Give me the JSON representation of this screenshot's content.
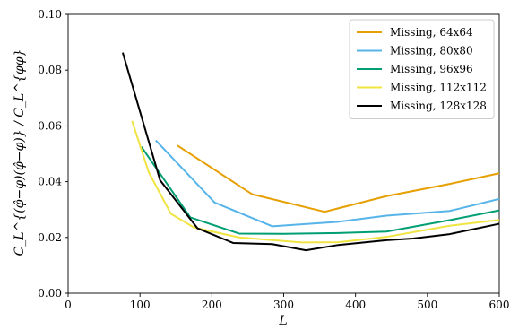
{
  "chart_data": {
    "type": "line",
    "title": "",
    "xlabel": "L",
    "ylabel": "C_L^{(φ̂−φ)(φ̂−φ)} / C_L^{φφ}",
    "xlim": [
      0,
      600
    ],
    "ylim": [
      0.0,
      0.1
    ],
    "xticks": [
      0,
      100,
      200,
      300,
      400,
      500,
      600
    ],
    "xtick_labels": [
      "0",
      "100",
      "200",
      "300",
      "400",
      "500",
      "600"
    ],
    "yticks": [
      0.0,
      0.02,
      0.04,
      0.06,
      0.08,
      0.1
    ],
    "ytick_labels": [
      "0.00",
      "0.02",
      "0.04",
      "0.06",
      "0.08",
      "0.10"
    ],
    "grid": false,
    "legend_position": "top-right",
    "series": [
      {
        "name": "Missing, 64x64",
        "color": "#E69F00",
        "points": [
          [
            152,
            0.053
          ],
          [
            256,
            0.0355
          ],
          [
            357,
            0.0292
          ],
          [
            443,
            0.0348
          ],
          [
            531,
            0.0392
          ],
          [
            600,
            0.043
          ]
        ]
      },
      {
        "name": "Missing, 80x80",
        "color": "#56B4E9",
        "points": [
          [
            122,
            0.0548
          ],
          [
            204,
            0.0325
          ],
          [
            284,
            0.024
          ],
          [
            376,
            0.0256
          ],
          [
            443,
            0.0278
          ],
          [
            531,
            0.0295
          ],
          [
            600,
            0.0338
          ]
        ]
      },
      {
        "name": "Missing, 96x96",
        "color": "#009E73",
        "points": [
          [
            102,
            0.0525
          ],
          [
            170,
            0.0272
          ],
          [
            238,
            0.0214
          ],
          [
            300,
            0.0213
          ],
          [
            376,
            0.0216
          ],
          [
            443,
            0.0221
          ],
          [
            531,
            0.0262
          ],
          [
            600,
            0.0297
          ]
        ]
      },
      {
        "name": "Missing, 112x112",
        "color": "#F0E442",
        "points": [
          [
            89,
            0.0618
          ],
          [
            112,
            0.0435
          ],
          [
            143,
            0.0285
          ],
          [
            175,
            0.0236
          ],
          [
            238,
            0.02
          ],
          [
            325,
            0.0182
          ],
          [
            376,
            0.0183
          ],
          [
            443,
            0.0202
          ],
          [
            531,
            0.0242
          ],
          [
            600,
            0.0263
          ]
        ]
      },
      {
        "name": "Missing, 128x128",
        "color": "#000000",
        "points": [
          [
            76,
            0.0863
          ],
          [
            128,
            0.0405
          ],
          [
            180,
            0.0233
          ],
          [
            230,
            0.018
          ],
          [
            284,
            0.0176
          ],
          [
            331,
            0.0154
          ],
          [
            376,
            0.0173
          ],
          [
            443,
            0.019
          ],
          [
            480,
            0.0196
          ],
          [
            531,
            0.0212
          ],
          [
            600,
            0.0249
          ]
        ]
      }
    ]
  }
}
